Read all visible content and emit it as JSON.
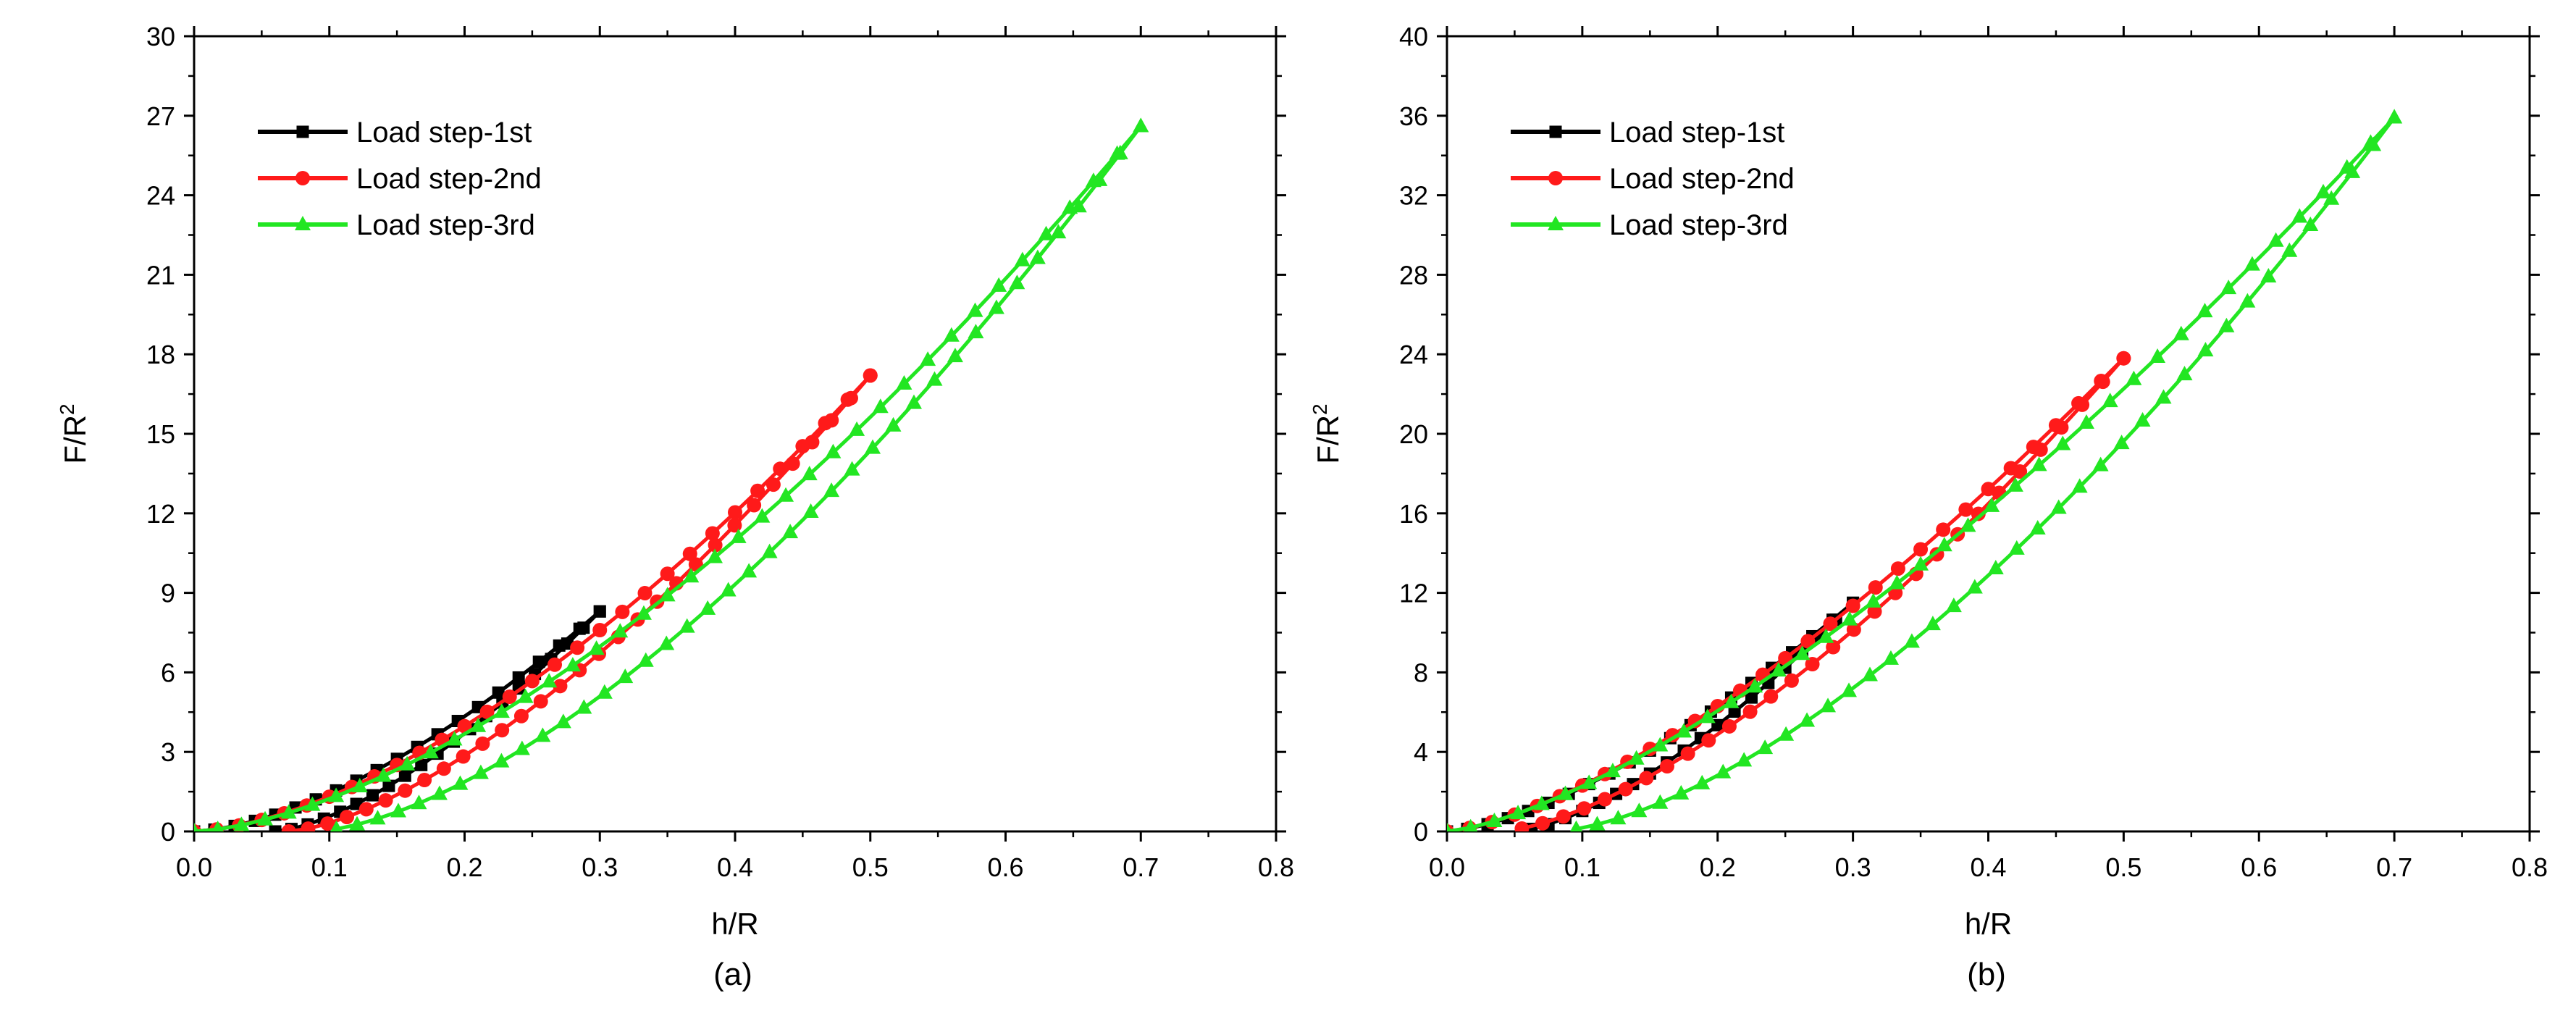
{
  "chart_data": [
    {
      "type": "line",
      "panel_label": "(a)",
      "xlabel": "h/R",
      "ylabel": {
        "base": "F/R",
        "superscript": "2"
      },
      "xlim": [
        0,
        0.8
      ],
      "ylim": [
        0,
        30
      ],
      "xticks": [
        0.0,
        0.1,
        0.2,
        0.3,
        0.4,
        0.5,
        0.6,
        0.7,
        0.8
      ],
      "xtick_labels": [
        "0.0",
        "0.1",
        "0.2",
        "0.3",
        "0.4",
        "0.5",
        "0.6",
        "0.7",
        "0.8"
      ],
      "yticks": [
        0,
        3,
        6,
        9,
        12,
        15,
        18,
        21,
        24,
        27,
        30
      ],
      "ytick_labels": [
        "0",
        "3",
        "6",
        "9",
        "12",
        "15",
        "18",
        "21",
        "24",
        "27",
        "30"
      ],
      "grid": false,
      "legend_position": "top-left",
      "series": [
        {
          "name": "Load step-1st",
          "color": "#000000",
          "marker": "square",
          "loading": {
            "h_max": 0.3,
            "F_max": 8.3,
            "exponent": 1.6
          },
          "unloading": {
            "h_residual": 0.06,
            "exponent": 1.5
          },
          "marker_count": 20
        },
        {
          "name": "Load step-2nd",
          "color": "#ff1a1a",
          "marker": "circle",
          "loading": {
            "h_max": 0.5,
            "F_max": 17.2,
            "exponent": 1.6
          },
          "unloading": {
            "h_residual": 0.07,
            "exponent": 1.5
          },
          "marker_count": 30
        },
        {
          "name": "Load step-3rd",
          "color": "#22e622",
          "marker": "triangle",
          "loading": {
            "h_max": 0.7,
            "F_max": 26.6,
            "exponent": 1.58
          },
          "unloading": {
            "h_residual": 0.09,
            "exponent": 1.55
          },
          "marker_count": 40
        }
      ]
    },
    {
      "type": "line",
      "panel_label": "(b)",
      "xlabel": "h/R",
      "ylabel": {
        "base": "F/R",
        "superscript": "2"
      },
      "xlim": [
        0,
        0.8
      ],
      "ylim": [
        0,
        40
      ],
      "xticks": [
        0.0,
        0.1,
        0.2,
        0.3,
        0.4,
        0.5,
        0.6,
        0.7,
        0.8
      ],
      "xtick_labels": [
        "0.0",
        "0.1",
        "0.2",
        "0.3",
        "0.4",
        "0.5",
        "0.6",
        "0.7",
        "0.8"
      ],
      "yticks": [
        0,
        4,
        8,
        12,
        16,
        20,
        24,
        28,
        32,
        36,
        40
      ],
      "ytick_labels": [
        "0",
        "4",
        "8",
        "12",
        "16",
        "20",
        "24",
        "28",
        "32",
        "36",
        "40"
      ],
      "grid": false,
      "legend_position": "top-left",
      "series": [
        {
          "name": "Load step-1st",
          "color": "#000000",
          "marker": "square",
          "loading": {
            "h_max": 0.3,
            "F_max": 11.5,
            "exponent": 1.5
          },
          "unloading": {
            "h_residual": 0.05,
            "exponent": 1.5
          },
          "marker_count": 20
        },
        {
          "name": "Load step-2nd",
          "color": "#ff1a1a",
          "marker": "circle",
          "loading": {
            "h_max": 0.5,
            "F_max": 23.8,
            "exponent": 1.45
          },
          "unloading": {
            "h_residual": 0.04,
            "exponent": 1.5
          },
          "marker_count": 30
        },
        {
          "name": "Load step-3rd",
          "color": "#22e622",
          "marker": "triangle",
          "loading": {
            "h_max": 0.7,
            "F_max": 35.9,
            "exponent": 1.42
          },
          "unloading": {
            "h_residual": 0.08,
            "exponent": 1.55
          },
          "marker_count": 40
        }
      ]
    }
  ]
}
